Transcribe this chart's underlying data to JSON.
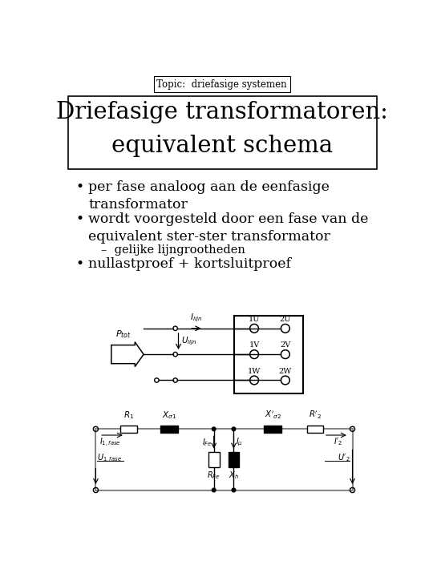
{
  "bg_color": "#ffffff",
  "topic_text": "Topic:  driefasige systemen",
  "title_line1": "Driefasige transformatoren:",
  "title_line2": "equivalent schema",
  "font_color": "#000000",
  "figsize": [
    5.4,
    7.2
  ],
  "dpi": 100,
  "topic_fontsize": 8.5,
  "title_fontsize": 21,
  "bullet_fontsize": 12.5,
  "sub_fontsize": 10.5,
  "circ_fontsize": 7,
  "ec_fontsize": 7.5
}
